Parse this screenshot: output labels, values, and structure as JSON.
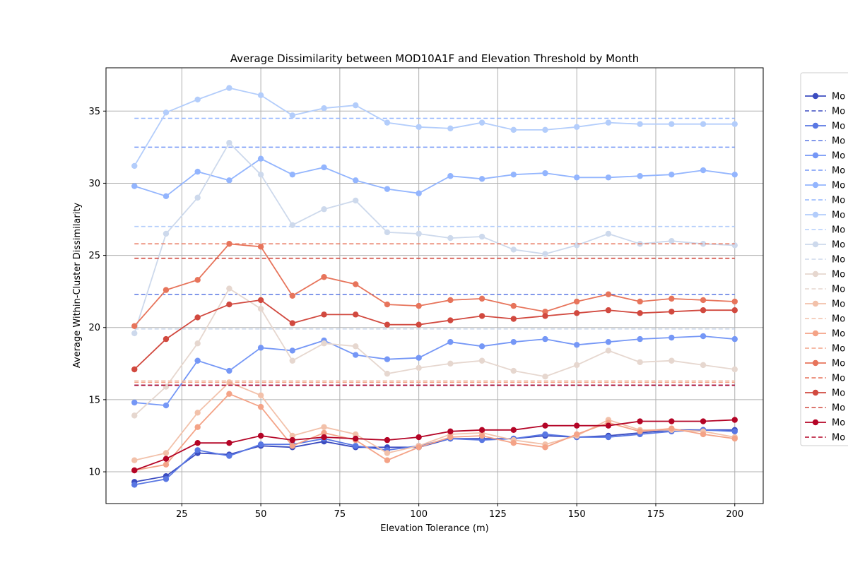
{
  "chart_data": {
    "type": "line",
    "title": "Average Dissimilarity between MOD10A1F and Elevation Threshold by Month",
    "xlabel": "Elevation Tolerance (m)",
    "ylabel": "Average Within-Cluster Dissimilarity",
    "xlim": [
      1,
      209
    ],
    "ylim": [
      7.8,
      38.0
    ],
    "xticks": [
      25,
      50,
      75,
      100,
      125,
      150,
      175,
      200
    ],
    "yticks": [
      10,
      15,
      20,
      25,
      30,
      35
    ],
    "grid": true,
    "legend_position": "right, outside plot",
    "x": [
      10,
      20,
      30,
      40,
      50,
      60,
      70,
      80,
      90,
      100,
      110,
      120,
      130,
      140,
      150,
      160,
      170,
      180,
      190,
      200
    ],
    "series": [
      {
        "name": "Mo",
        "style": "solid",
        "color": "#3b4cc0",
        "values": [
          9.3,
          9.7,
          11.3,
          11.2,
          11.8,
          11.7,
          12.1,
          11.7,
          11.7,
          11.7,
          12.3,
          12.3,
          12.3,
          12.5,
          12.4,
          12.5,
          12.7,
          12.9,
          12.9,
          12.9
        ]
      },
      {
        "name": "Mo",
        "style": "dashed",
        "color": "#3b4cc0",
        "level": 16.0
      },
      {
        "name": "Mo",
        "style": "solid",
        "color": "#5977e3",
        "values": [
          9.1,
          9.5,
          11.5,
          11.1,
          11.9,
          11.9,
          12.3,
          11.8,
          11.5,
          11.8,
          12.3,
          12.2,
          12.3,
          12.6,
          12.4,
          12.4,
          12.6,
          12.8,
          12.9,
          12.8
        ]
      },
      {
        "name": "Mo",
        "style": "dashed",
        "color": "#5977e3",
        "level": 22.3
      },
      {
        "name": "Mo",
        "style": "solid",
        "color": "#7597f6",
        "values": [
          14.8,
          14.6,
          17.7,
          17.0,
          18.6,
          18.4,
          19.1,
          18.1,
          17.8,
          17.9,
          19.0,
          18.7,
          19.0,
          19.2,
          18.8,
          19.0,
          19.2,
          19.3,
          19.4,
          19.2
        ]
      },
      {
        "name": "Mo",
        "style": "dashed",
        "color": "#7597f6",
        "level": 32.5
      },
      {
        "name": "Mo",
        "style": "solid",
        "color": "#93b5fe",
        "values": [
          29.8,
          29.1,
          30.8,
          30.2,
          31.7,
          30.6,
          31.1,
          30.2,
          29.6,
          29.3,
          30.5,
          30.3,
          30.6,
          30.7,
          30.4,
          30.4,
          30.5,
          30.6,
          30.9,
          30.6
        ]
      },
      {
        "name": "Mo",
        "style": "dashed",
        "color": "#93b5fe",
        "level": 34.5
      },
      {
        "name": "Mo",
        "style": "solid",
        "color": "#b3cdfb",
        "values": [
          31.2,
          34.9,
          35.8,
          36.6,
          36.1,
          34.7,
          35.2,
          35.4,
          34.2,
          33.9,
          33.8,
          34.2,
          33.7,
          33.7,
          33.9,
          34.2,
          34.1,
          34.1,
          34.1,
          34.1
        ]
      },
      {
        "name": "Mo",
        "style": "dashed",
        "color": "#b3cdfb",
        "level": 27.0
      },
      {
        "name": "Mo",
        "style": "solid",
        "color": "#cdd9ec",
        "values": [
          19.6,
          26.5,
          29.0,
          32.8,
          30.6,
          27.1,
          28.2,
          28.8,
          26.6,
          26.5,
          26.2,
          26.3,
          25.4,
          25.1,
          25.7,
          26.5,
          25.8,
          26.0,
          25.8,
          25.7
        ]
      },
      {
        "name": "Mo",
        "style": "dashed",
        "color": "#cdd9ec",
        "level": 19.9
      },
      {
        "name": "Mo",
        "style": "solid",
        "color": "#e6d7cf",
        "values": [
          13.9,
          15.9,
          18.9,
          22.7,
          21.3,
          17.7,
          18.9,
          18.7,
          16.8,
          17.2,
          17.5,
          17.7,
          17.0,
          16.6,
          17.4,
          18.4,
          17.6,
          17.7,
          17.4,
          17.1
        ]
      },
      {
        "name": "Mo",
        "style": "dashed",
        "color": "#e6d7cf",
        "level": 16.3
      },
      {
        "name": "Mo",
        "style": "solid",
        "color": "#f2c1aa",
        "values": [
          10.8,
          11.3,
          14.1,
          16.2,
          15.3,
          12.5,
          13.1,
          12.6,
          11.3,
          11.8,
          12.6,
          12.7,
          12.2,
          11.9,
          12.5,
          13.6,
          12.9,
          12.9,
          12.8,
          12.4
        ]
      },
      {
        "name": "Mo",
        "style": "dashed",
        "color": "#f2c1aa",
        "level": 16.3
      },
      {
        "name": "Mo",
        "style": "solid",
        "color": "#f4a387",
        "values": [
          10.1,
          10.5,
          13.1,
          15.4,
          14.5,
          11.8,
          12.7,
          12.2,
          10.8,
          11.7,
          12.4,
          12.5,
          12.0,
          11.7,
          12.6,
          13.4,
          12.8,
          13.0,
          12.6,
          12.3
        ]
      },
      {
        "name": "Mo",
        "style": "dashed",
        "color": "#f4a387",
        "level": 16.2
      },
      {
        "name": "Mo",
        "style": "solid",
        "color": "#e7745b",
        "values": [
          20.1,
          22.6,
          23.3,
          25.8,
          25.6,
          22.2,
          23.5,
          23.0,
          21.6,
          21.5,
          21.9,
          22.0,
          21.5,
          21.1,
          21.8,
          22.3,
          21.8,
          22.0,
          21.9,
          21.8
        ]
      },
      {
        "name": "Mo",
        "style": "dashed",
        "color": "#e7745b",
        "level": 25.8
      },
      {
        "name": "Mo",
        "style": "solid",
        "color": "#d1493f",
        "values": [
          17.1,
          19.2,
          20.7,
          21.6,
          21.9,
          20.3,
          20.9,
          20.9,
          20.2,
          20.2,
          20.5,
          20.8,
          20.6,
          20.8,
          21.0,
          21.2,
          21.0,
          21.1,
          21.2,
          21.2
        ]
      },
      {
        "name": "Mo",
        "style": "dashed",
        "color": "#d1493f",
        "level": 24.8
      },
      {
        "name": "Mo",
        "style": "solid",
        "color": "#b40426",
        "values": [
          10.1,
          10.9,
          12.0,
          12.0,
          12.5,
          12.2,
          12.4,
          12.3,
          12.2,
          12.4,
          12.8,
          12.9,
          12.9,
          13.2,
          13.2,
          13.2,
          13.5,
          13.5,
          13.5,
          13.6
        ]
      },
      {
        "name": "Mo",
        "style": "dashed",
        "color": "#b40426",
        "level": 16.0
      }
    ]
  }
}
